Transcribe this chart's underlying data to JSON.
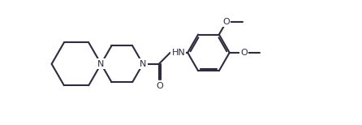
{
  "line_color": "#2d2d3f",
  "bg_color": "#ffffff",
  "lw": 1.5,
  "fs": 8.0,
  "xlim": [
    -0.3,
    9.5
  ],
  "ylim": [
    -0.5,
    3.8
  ]
}
